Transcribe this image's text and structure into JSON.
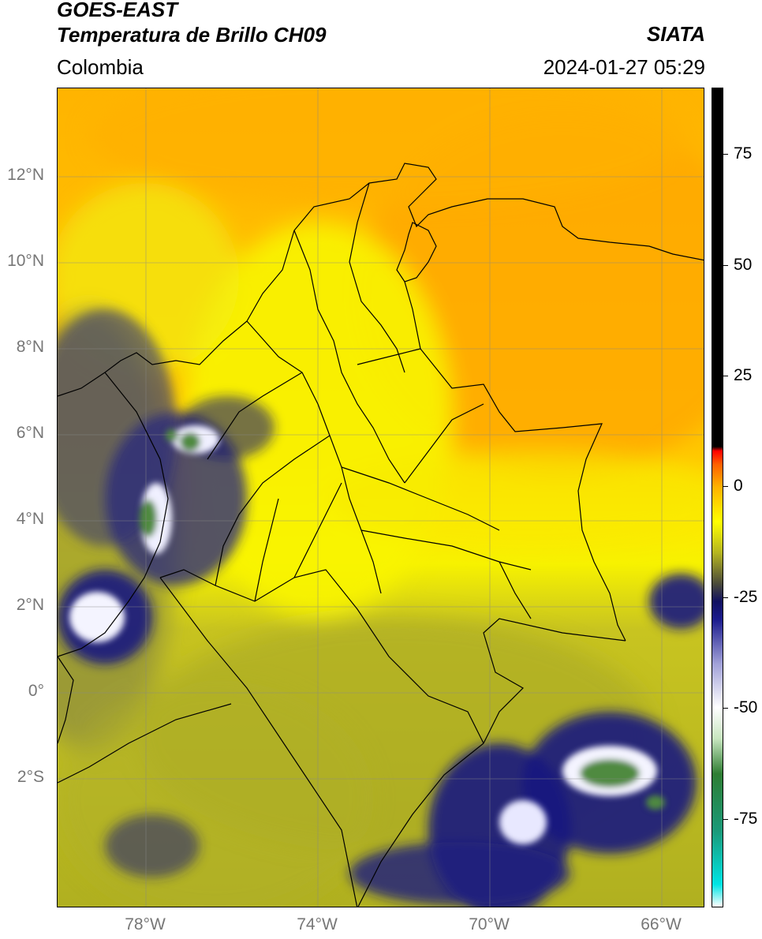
{
  "header": {
    "satellite": "GOES-EAST",
    "product": "Temperatura de Brillo CH09",
    "region": "Colombia",
    "organization": "SIATA",
    "datetime": "2024-01-27 05:29"
  },
  "axes": {
    "latitude_ticks": [
      "12°N",
      "10°N",
      "8°N",
      "6°N",
      "4°N",
      "2°N",
      "0°",
      "2°S"
    ],
    "longitude_ticks": [
      "78°W",
      "74°W",
      "70°W",
      "66°W"
    ]
  },
  "colorbar": {
    "ticks": [
      "75",
      "50",
      "25",
      "0",
      "-25",
      "-50",
      "-75"
    ],
    "stops": [
      {
        "value": -95,
        "color": "#ffffff"
      },
      {
        "value": -90,
        "color": "#00e5e5"
      },
      {
        "value": -78,
        "color": "#1a9a7a"
      },
      {
        "value": -65,
        "color": "#2e7d32"
      },
      {
        "value": -57,
        "color": "#c8e6c0"
      },
      {
        "value": -50,
        "color": "#ffffff"
      },
      {
        "value": -40,
        "color": "#a0a0d8"
      },
      {
        "value": -30,
        "color": "#1a1a8c"
      },
      {
        "value": -26,
        "color": "#101060"
      },
      {
        "value": -22,
        "color": "#4a4a3a"
      },
      {
        "value": -15,
        "color": "#b5b520"
      },
      {
        "value": -8,
        "color": "#ffff00"
      },
      {
        "value": 0,
        "color": "#ffb000"
      },
      {
        "value": 5,
        "color": "#ff6000"
      },
      {
        "value": 8,
        "color": "#ff0000"
      },
      {
        "value": 9,
        "color": "#000000"
      },
      {
        "value": 90,
        "color": "#000000"
      }
    ]
  },
  "colors": {
    "warm_orange": "#ffa800",
    "yellow": "#f7f000",
    "olive": "#b8b820",
    "dark_blue": "#1a1a80",
    "white_cloud": "#f4f4ff",
    "green_cloud": "#4f8a3f"
  }
}
